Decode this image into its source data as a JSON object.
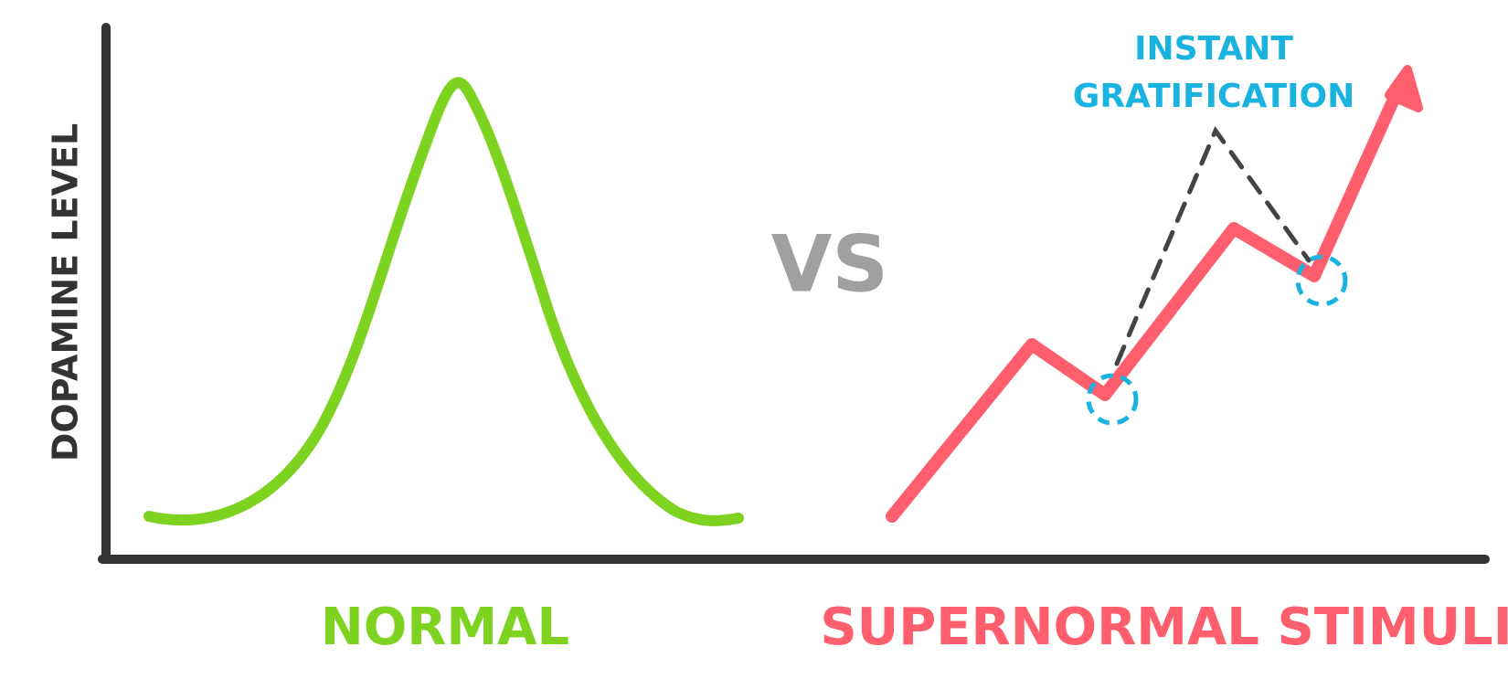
{
  "y_axis_label": "DOPAMINE LEVEL",
  "vs_label": "VS",
  "normal_label": "NORMAL",
  "supernormal_label": "SUPERNORMAL STIMULI",
  "instant_line1": "INSTANT",
  "instant_line2": "GRATIFICATION",
  "colors": {
    "axis": "#333333",
    "normal": "#7ed321",
    "supernormal": "#ff5e6c",
    "instant": "#1ab3e0",
    "dashed": "#444444",
    "vs": "#a0a0a0"
  }
}
